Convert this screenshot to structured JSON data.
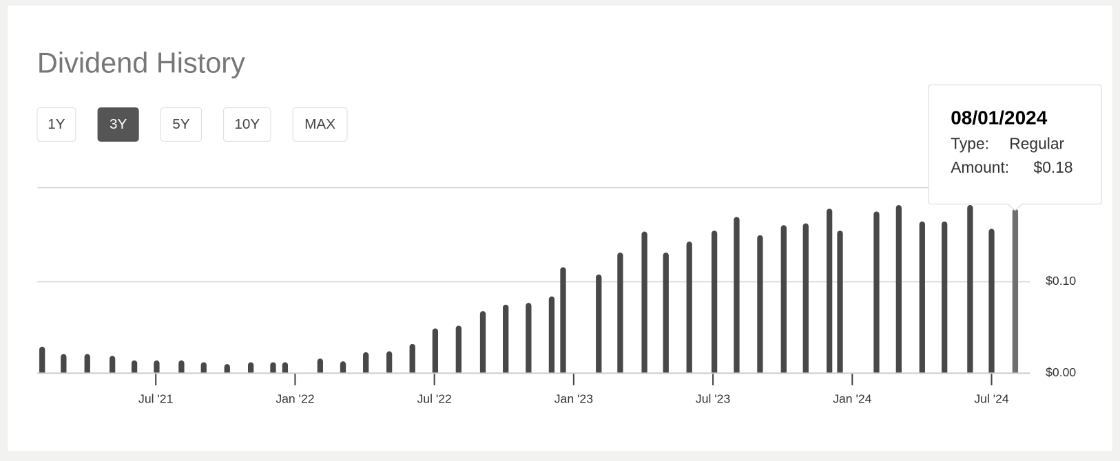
{
  "chart_data": {
    "type": "bar",
    "title": "Dividend History",
    "buttons": [
      "1Y",
      "3Y",
      "5Y",
      "10Y",
      "MAX"
    ],
    "active_button": "3Y",
    "x": [
      2021.092,
      2021.169,
      2021.254,
      2021.344,
      2021.423,
      2021.503,
      2021.592,
      2021.672,
      2021.756,
      2021.841,
      2021.921,
      2021.964,
      2022.09,
      2022.172,
      2022.254,
      2022.338,
      2022.421,
      2022.503,
      2022.587,
      2022.674,
      2022.756,
      2022.838,
      2022.921,
      2022.962,
      2023.09,
      2023.167,
      2023.254,
      2023.331,
      2023.415,
      2023.505,
      2023.585,
      2023.669,
      2023.754,
      2023.833,
      2023.918,
      2023.956,
      2024.087,
      2024.167,
      2024.251,
      2024.331,
      2024.423,
      2024.5,
      2024.585
    ],
    "values": [
      0.029,
      0.021,
      0.021,
      0.019,
      0.014,
      0.014,
      0.014,
      0.012,
      0.01,
      0.012,
      0.012,
      0.012,
      0.016,
      0.013,
      0.023,
      0.024,
      0.032,
      0.049,
      0.052,
      0.068,
      0.075,
      0.077,
      0.084,
      0.116,
      0.108,
      0.132,
      0.155,
      0.132,
      0.144,
      0.156,
      0.171,
      0.151,
      0.162,
      0.164,
      0.18,
      0.156,
      0.177,
      0.184,
      0.166,
      0.166,
      0.184,
      0.158,
      0.18
    ],
    "color": "#48484a",
    "hover_color": "#6e7070",
    "xlim": [
      2021.074,
      2024.638
    ],
    "xticks": [
      {
        "value": 2021.5,
        "label": "Jul '21"
      },
      {
        "value": 2022.0,
        "label": "Jan '22"
      },
      {
        "value": 2022.5,
        "label": "Jul '22"
      },
      {
        "value": 2023.0,
        "label": "Jan '23"
      },
      {
        "value": 2023.5,
        "label": "Jul '23"
      },
      {
        "value": 2024.0,
        "label": "Jan '24"
      },
      {
        "value": 2024.5,
        "label": "Jul '24"
      }
    ],
    "ylim": [
      0,
      0.203
    ],
    "yticks": [
      {
        "value": 0,
        "label": "$0.00"
      },
      {
        "value": 0.1,
        "label": "$0.10"
      }
    ],
    "grid": true,
    "tooltip": {
      "date": "08/01/2024",
      "type_label": "Type:",
      "type_value": "Regular",
      "amount_label": "Amount:",
      "amount_value": "$0.18"
    }
  }
}
